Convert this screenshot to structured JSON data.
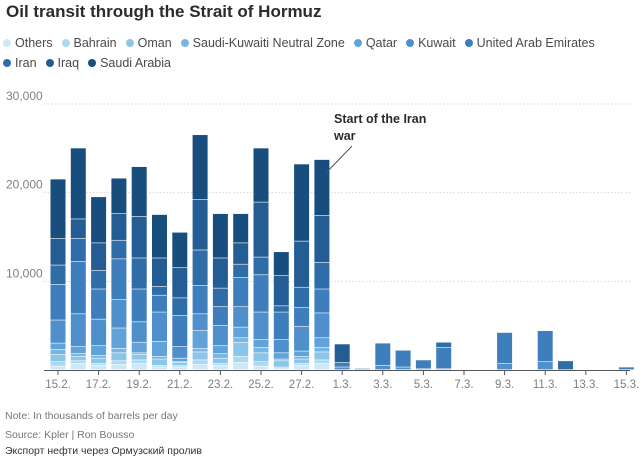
{
  "title": "Oil transit through the Strait of Hormuz",
  "note": "Note: In thousands of barrels per day",
  "source": "Source: Kpler | Ron Bousso",
  "caption": "Экспорт нефти через Ормузский пролив",
  "chart_data": {
    "type": "bar",
    "stacked": true,
    "title": "Oil transit through the Strait of Hormuz",
    "xlabel": "",
    "ylabel": "",
    "ylim": [
      0,
      30000
    ],
    "yticks": [
      0,
      10000,
      20000,
      30000
    ],
    "ytick_labels": [
      "",
      "10,000",
      "20,000",
      "30,000"
    ],
    "grid": true,
    "legend_position": "top",
    "categories": [
      "15.2.",
      "16.2.",
      "17.2.",
      "18.2.",
      "19.2.",
      "20.2.",
      "21.2.",
      "22.2.",
      "23.2.",
      "24.2.",
      "25.2.",
      "26.2.",
      "27.2.",
      "28.2.",
      "1.3.",
      "2.3.",
      "3.3.",
      "4.3.",
      "5.3.",
      "6.3.",
      "7.3.",
      "8.3.",
      "9.3.",
      "10.3.",
      "11.3.",
      "12.3.",
      "13.3.",
      "14.3.",
      "15.3."
    ],
    "xtick_labels": [
      "15.2.",
      "17.2.",
      "19.2.",
      "21.2.",
      "23.2.",
      "25.2.",
      "27.2.",
      "1.3.",
      "3.3.",
      "5.3.",
      "7.3.",
      "9.3.",
      "11.3.",
      "13.3.",
      "15.3."
    ],
    "series": [
      {
        "name": "Others",
        "color": "#cde8f6",
        "values": [
          400,
          700,
          500,
          600,
          700,
          300,
          300,
          600,
          500,
          800,
          400,
          100,
          500,
          700,
          0,
          0,
          0,
          0,
          0,
          0,
          0,
          0,
          0,
          0,
          0,
          0,
          0,
          0,
          0
        ]
      },
      {
        "name": "Bahrain",
        "color": "#a9daf3",
        "values": [
          500,
          300,
          200,
          400,
          400,
          200,
          200,
          500,
          200,
          700,
          500,
          200,
          200,
          400,
          0,
          0,
          0,
          0,
          0,
          0,
          0,
          0,
          0,
          0,
          0,
          0,
          0,
          0,
          0
        ]
      },
      {
        "name": "Oman",
        "color": "#8bc5ea",
        "values": [
          800,
          500,
          600,
          900,
          600,
          700,
          300,
          900,
          600,
          1600,
          1000,
          700,
          500,
          900,
          0,
          0,
          0,
          0,
          0,
          0,
          0,
          0,
          0,
          0,
          0,
          0,
          0,
          0,
          0
        ]
      },
      {
        "name": "Saudi-Kuwaiti Neutral Zone",
        "color": "#77b5e4",
        "values": [
          600,
          300,
          300,
          500,
          200,
          300,
          100,
          400,
          500,
          500,
          600,
          200,
          300,
          500,
          0,
          0,
          0,
          0,
          0,
          0,
          0,
          0,
          0,
          0,
          0,
          0,
          0,
          0,
          0
        ]
      },
      {
        "name": "Qatar",
        "color": "#5fa3da",
        "values": [
          700,
          800,
          1100,
          2300,
          1200,
          1700,
          400,
          2000,
          900,
          1200,
          900,
          700,
          600,
          1100,
          0,
          0,
          0,
          0,
          0,
          0,
          0,
          0,
          0,
          0,
          0,
          0,
          0,
          0,
          0
        ]
      },
      {
        "name": "Kuwait",
        "color": "#4e8fcc",
        "values": [
          2600,
          3700,
          3000,
          3200,
          2300,
          3300,
          1300,
          1900,
          2300,
          2300,
          3100,
          1500,
          2800,
          2800,
          300,
          100,
          500,
          300,
          100,
          100,
          0,
          0,
          700,
          0,
          900,
          0,
          0,
          0,
          0
        ]
      },
      {
        "name": "United Arab Emirates",
        "color": "#3e7ebc",
        "values": [
          4000,
          5900,
          3400,
          4600,
          3700,
          1900,
          3500,
          3200,
          2100,
          3300,
          4200,
          3100,
          2100,
          2700,
          500,
          100,
          2500,
          1900,
          1000,
          2400,
          0,
          0,
          3500,
          0,
          3500,
          0,
          0,
          0,
          300
        ]
      },
      {
        "name": "Iran",
        "color": "#2f6da8",
        "values": [
          2200,
          2600,
          2100,
          2100,
          3500,
          1000,
          2000,
          4000,
          2100,
          1500,
          2000,
          700,
          2300,
          3000,
          0,
          0,
          0,
          0,
          0,
          600,
          0,
          0,
          0,
          0,
          0,
          1000,
          0,
          0,
          0
        ]
      },
      {
        "name": "Iraq",
        "color": "#235d93",
        "values": [
          3000,
          2200,
          3100,
          3000,
          4700,
          3200,
          3400,
          5700,
          3400,
          2400,
          6200,
          3400,
          5200,
          5300,
          2100,
          0,
          0,
          0,
          0,
          0,
          0,
          0,
          0,
          0,
          0,
          0,
          0,
          0,
          0
        ]
      },
      {
        "name": "Saudi Arabia",
        "color": "#184e7e",
        "values": [
          6700,
          8000,
          5200,
          4000,
          5600,
          4900,
          4000,
          7300,
          5000,
          3300,
          6100,
          2700,
          8700,
          6300,
          0,
          0,
          0,
          0,
          0,
          0,
          0,
          0,
          0,
          0,
          0,
          0,
          0,
          0,
          0
        ]
      }
    ],
    "annotations": [
      {
        "text_lines": [
          "Start of the Iran",
          "war"
        ],
        "target_category": "28.2."
      }
    ]
  }
}
